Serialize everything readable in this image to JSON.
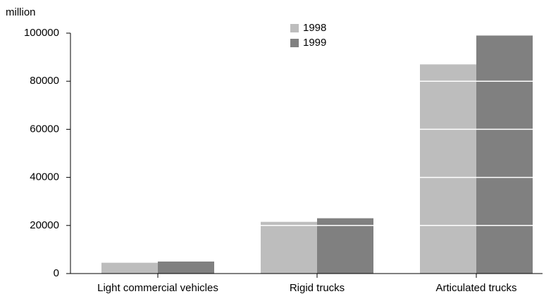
{
  "chart_data": {
    "type": "bar",
    "y_axis_label": "million",
    "categories": [
      "Light commercial vehicles",
      "Rigid trucks",
      "Articulated trucks"
    ],
    "series": [
      {
        "name": "1998",
        "color": "#bdbdbd",
        "values": [
          4500,
          21500,
          87000
        ]
      },
      {
        "name": "1999",
        "color": "#808080",
        "values": [
          5000,
          23000,
          99000
        ]
      }
    ],
    "ylim": [
      0,
      100000
    ],
    "yticks": [
      0,
      20000,
      40000,
      60000,
      80000,
      100000
    ],
    "grid": true,
    "grid_color": "#ffffff",
    "legend": "top"
  }
}
